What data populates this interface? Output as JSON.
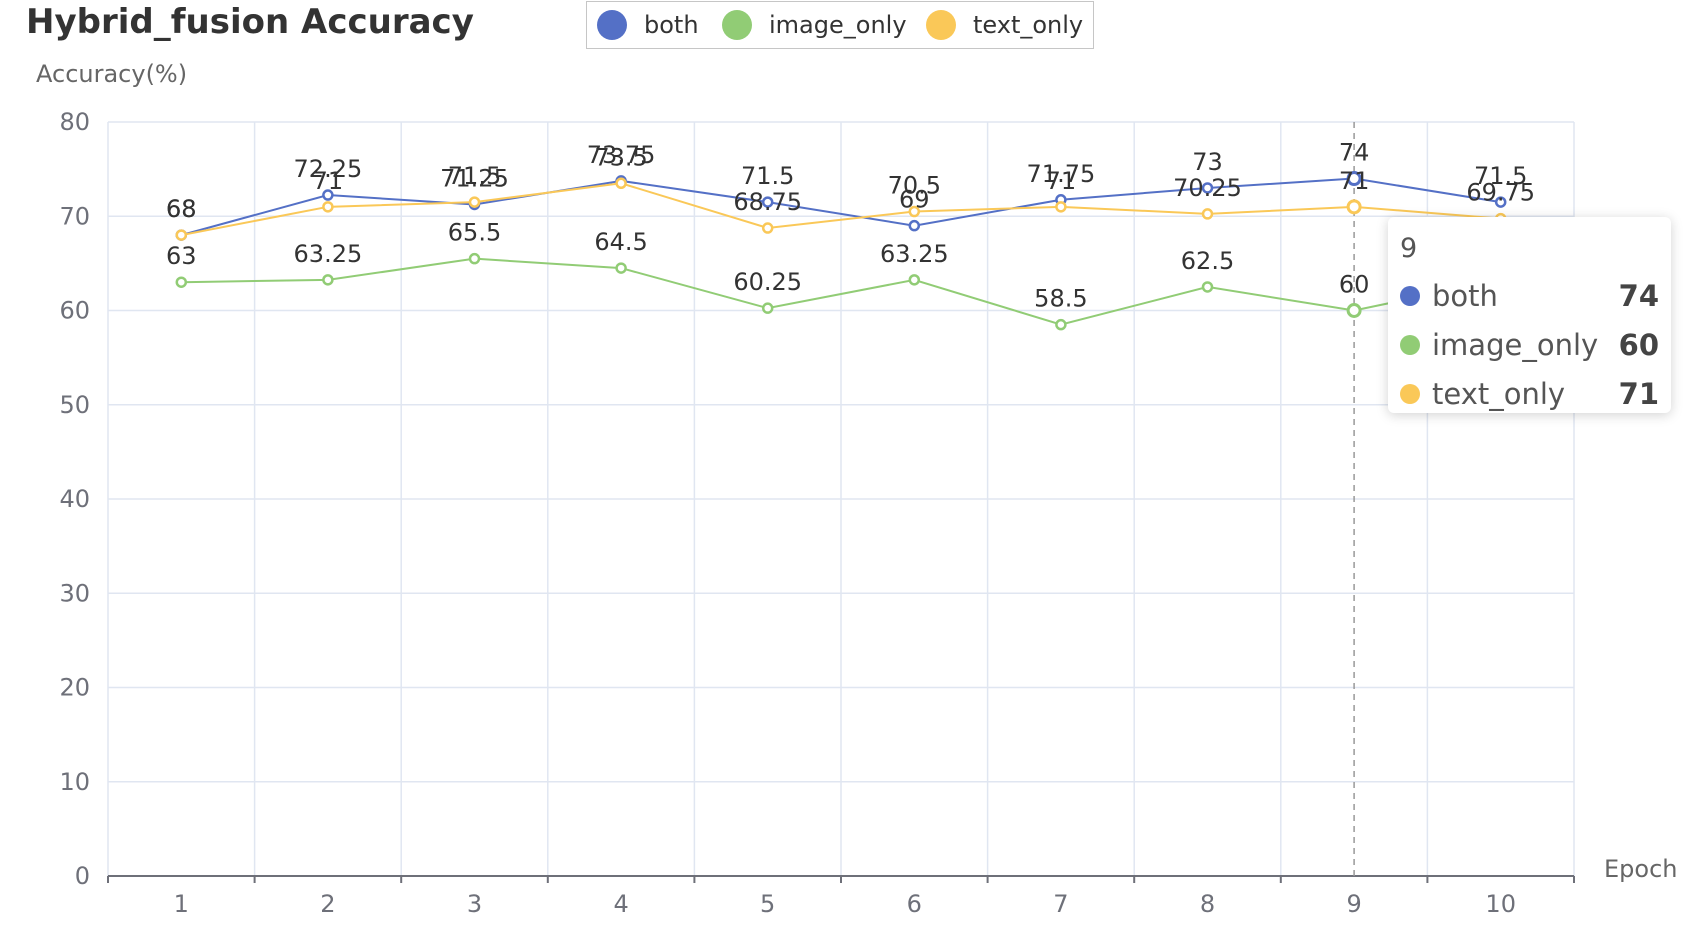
{
  "chart_data": {
    "type": "line",
    "title": "Hybrid_fusion Accuracy",
    "ylabel": "Accuracy(%)",
    "xlabel": "Epoch",
    "categories": [
      "1",
      "2",
      "3",
      "4",
      "5",
      "6",
      "7",
      "8",
      "9",
      "10"
    ],
    "ylim": [
      0,
      80
    ],
    "yticks": [
      "0",
      "10",
      "20",
      "30",
      "40",
      "50",
      "60",
      "70",
      "80"
    ],
    "grid": true,
    "legend_position": "top-center",
    "series": [
      {
        "name": "both",
        "color": "#5470c6",
        "values": [
          68,
          72.25,
          71.25,
          73.75,
          71.5,
          69,
          71.75,
          73,
          74,
          71.5
        ]
      },
      {
        "name": "image_only",
        "color": "#91cc75",
        "values": [
          63,
          63.25,
          65.5,
          64.5,
          60.25,
          63.25,
          58.5,
          62.5,
          60,
          63.25
        ]
      },
      {
        "name": "text_only",
        "color": "#fac858",
        "values": [
          68,
          71,
          71.5,
          73.5,
          68.75,
          70.5,
          71,
          70.25,
          71,
          69.75
        ]
      }
    ],
    "tooltip": {
      "title": "9",
      "rows": [
        {
          "name": "both",
          "value": "74",
          "color": "#5470c6"
        },
        {
          "name": "image_only",
          "value": "60",
          "color": "#91cc75"
        },
        {
          "name": "text_only",
          "value": "71",
          "color": "#fac858"
        }
      ]
    }
  }
}
